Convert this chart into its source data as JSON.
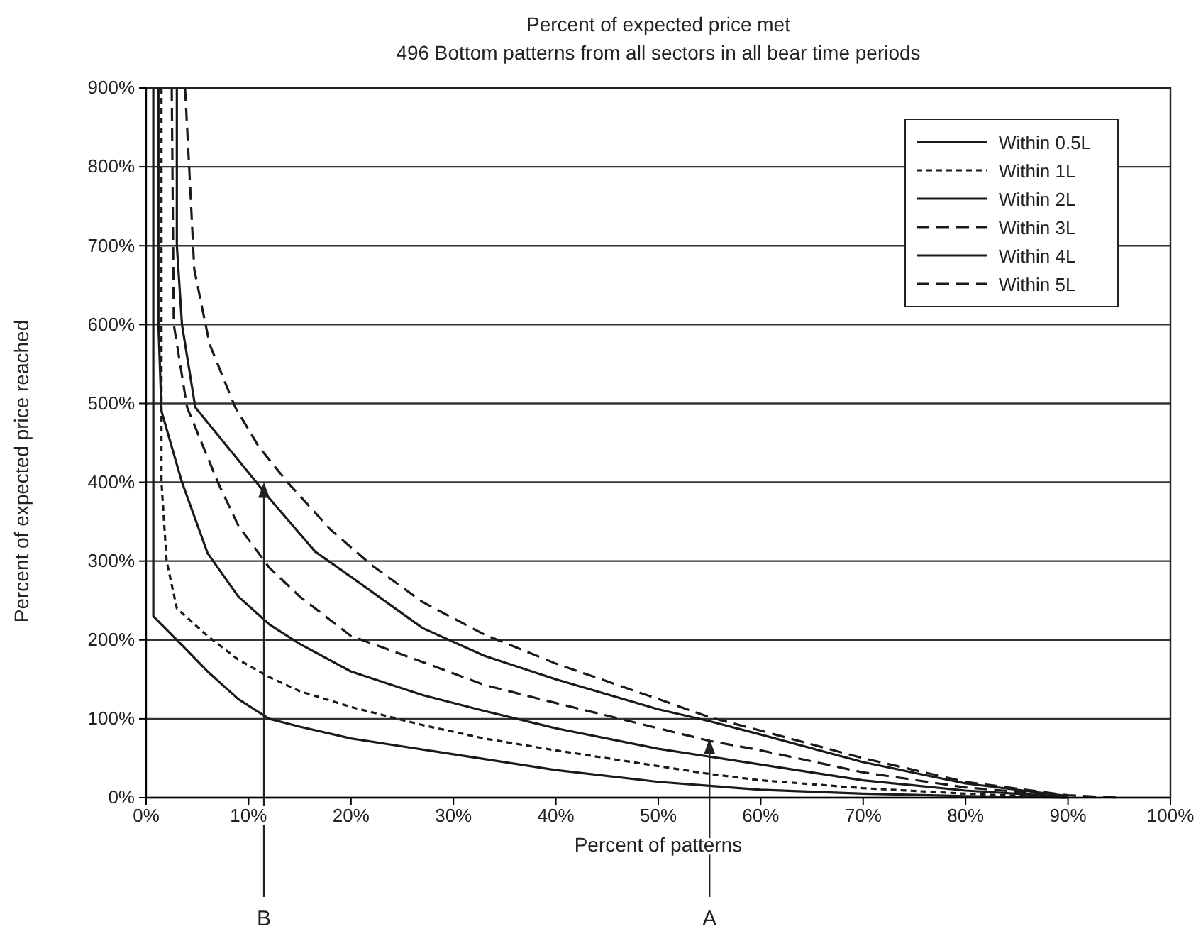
{
  "chart_data": {
    "type": "line",
    "title": "Percent of expected price met",
    "subtitle": "496 Bottom patterns from all sectors in all bear time periods",
    "xlabel": "Percent of patterns",
    "ylabel": "Percent of expected price reached",
    "xlim": [
      0,
      100
    ],
    "ylim": [
      0,
      900
    ],
    "xticks": [
      {
        "value": 0,
        "label": "0%"
      },
      {
        "value": 10,
        "label": "10%"
      },
      {
        "value": 20,
        "label": "20%"
      },
      {
        "value": 30,
        "label": "30%"
      },
      {
        "value": 40,
        "label": "40%"
      },
      {
        "value": 50,
        "label": "50%"
      },
      {
        "value": 60,
        "label": "60%"
      },
      {
        "value": 70,
        "label": "70%"
      },
      {
        "value": 80,
        "label": "80%"
      },
      {
        "value": 90,
        "label": "90%"
      },
      {
        "value": 100,
        "label": "100%"
      }
    ],
    "yticks": [
      {
        "value": 0,
        "label": "0%"
      },
      {
        "value": 100,
        "label": "100%"
      },
      {
        "value": 200,
        "label": "200%"
      },
      {
        "value": 300,
        "label": "300%"
      },
      {
        "value": 400,
        "label": "400%"
      },
      {
        "value": 500,
        "label": "500%"
      },
      {
        "value": 600,
        "label": "600%"
      },
      {
        "value": 700,
        "label": "700%"
      },
      {
        "value": 800,
        "label": "800%"
      },
      {
        "value": 900,
        "label": "900%"
      }
    ],
    "grid": "y",
    "legend": "top right",
    "marker": "none",
    "series": [
      {
        "name": "Within 0.5L",
        "color": "#1a1a1a",
        "line_style": "solid",
        "x": [
          0.7,
          0.7,
          3,
          6,
          9,
          12,
          15,
          20,
          25,
          30,
          40,
          50,
          55,
          60,
          70,
          80,
          90
        ],
        "values": [
          900,
          230,
          200,
          160,
          125,
          100,
          90,
          75,
          65,
          55,
          35,
          20,
          15,
          10,
          5,
          2,
          0
        ]
      },
      {
        "name": "Within 1L",
        "color": "#1a1a1a",
        "line_style": "dotted",
        "x": [
          1.5,
          1.5,
          2,
          3,
          6,
          9,
          12,
          15,
          20,
          27,
          33,
          40,
          50,
          55,
          60,
          70,
          80,
          90
        ],
        "values": [
          900,
          400,
          300,
          240,
          205,
          175,
          153,
          135,
          115,
          92,
          75,
          60,
          40,
          30,
          22,
          12,
          5,
          0
        ]
      },
      {
        "name": "Within 2L",
        "color": "#1a1a1a",
        "line_style": "solid",
        "x": [
          1.2,
          1.2,
          1.5,
          3.5,
          6,
          9,
          12,
          15,
          20,
          27,
          33,
          40,
          50,
          55,
          60,
          70,
          80,
          90
        ],
        "values": [
          900,
          600,
          490,
          400,
          310,
          255,
          220,
          195,
          160,
          130,
          110,
          88,
          62,
          52,
          42,
          22,
          9,
          1
        ]
      },
      {
        "name": "Within 3L",
        "color": "#1a1a1a",
        "line_style": "dashed",
        "x": [
          2.5,
          2.7,
          4,
          7,
          9,
          12,
          15,
          20,
          27,
          33,
          40,
          50,
          55,
          60,
          70,
          80,
          90
        ],
        "values": [
          900,
          600,
          495,
          400,
          345,
          292,
          255,
          205,
          172,
          143,
          120,
          88,
          72,
          60,
          32,
          13,
          2
        ]
      },
      {
        "name": "Within 4L",
        "color": "#1a1a1a",
        "line_style": "solid",
        "x": [
          3,
          3,
          3.5,
          4.8,
          7,
          9.5,
          12,
          16.5,
          20,
          27,
          33,
          40,
          50,
          55,
          60,
          70,
          80,
          90
        ],
        "values": [
          900,
          700,
          600,
          495,
          460,
          420,
          380,
          312,
          280,
          215,
          180,
          150,
          112,
          97,
          80,
          45,
          18,
          2
        ]
      },
      {
        "name": "Within 5L",
        "color": "#1a1a1a",
        "line_style": "dashed",
        "x": [
          3.8,
          4.2,
          4.7,
          6.2,
          8.7,
          11,
          13.8,
          18,
          22,
          27,
          33,
          40,
          50,
          55,
          60,
          70,
          80,
          90,
          95
        ],
        "values": [
          900,
          800,
          670,
          575,
          495,
          445,
          400,
          340,
          295,
          248,
          207,
          170,
          125,
          102,
          85,
          50,
          20,
          3,
          0
        ]
      }
    ],
    "annotations": [
      {
        "text": "B",
        "x": 11.5,
        "y": 400
      },
      {
        "text": "A",
        "x": 55,
        "y": 75
      }
    ]
  }
}
